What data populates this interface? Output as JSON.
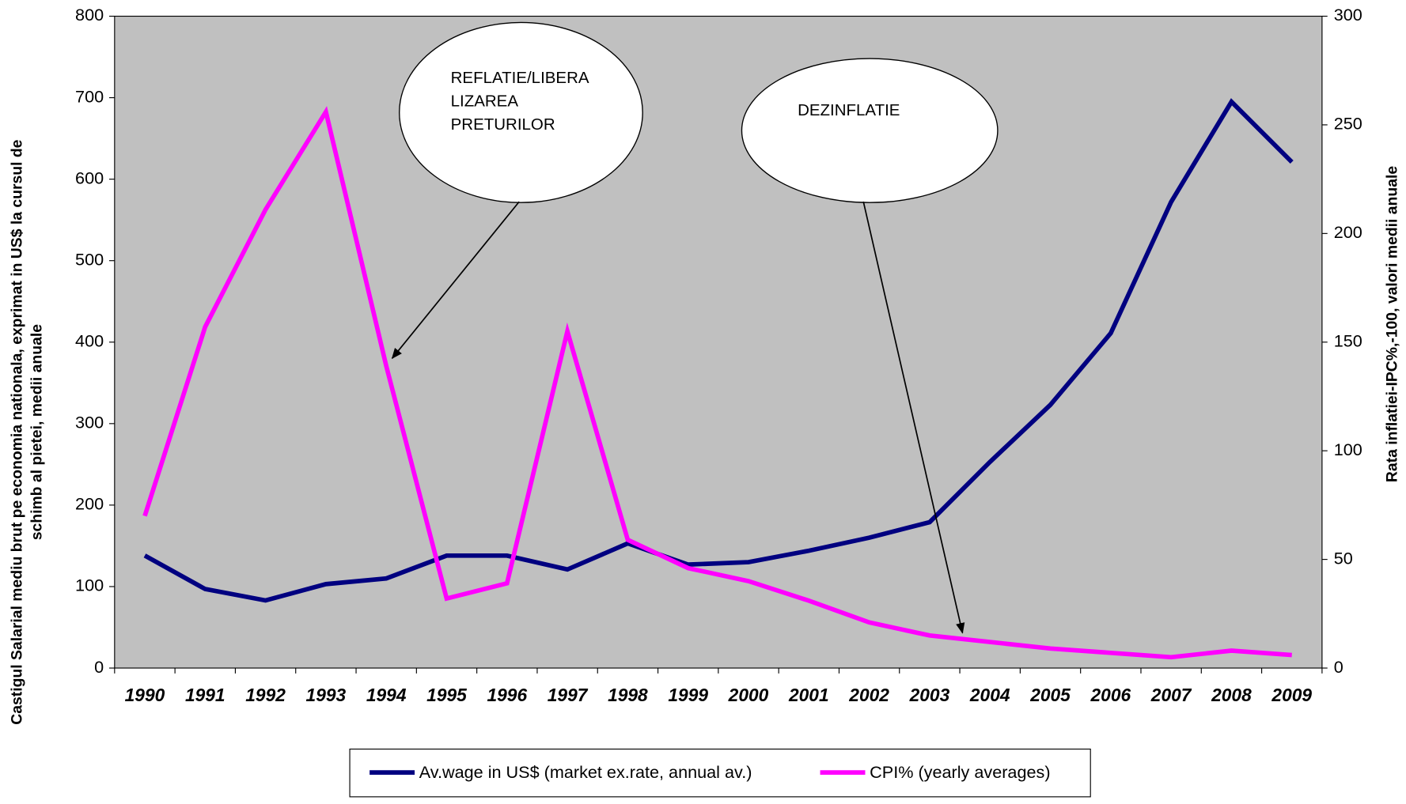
{
  "chart_data": {
    "type": "line",
    "categories": [
      "1990",
      "1991",
      "1992",
      "1993",
      "1994",
      "1995",
      "1996",
      "1997",
      "1998",
      "1999",
      "2000",
      "2001",
      "2002",
      "2003",
      "2004",
      "2005",
      "2006",
      "2007",
      "2008",
      "2009"
    ],
    "series": [
      {
        "name": "Av.wage in US$ (market ex.rate, annual av.)",
        "color": "#000080",
        "axis": "y",
        "values": [
          138,
          97,
          83,
          103,
          110,
          138,
          138,
          121,
          153,
          127,
          130,
          144,
          160,
          179,
          253,
          323,
          411,
          572,
          695,
          621
        ]
      },
      {
        "name": "CPI% (yearly averages)",
        "color": "#ff00ff",
        "axis": "y2",
        "values": [
          70,
          157,
          211,
          256,
          139,
          32,
          39,
          155,
          59,
          46,
          40,
          31,
          21,
          15,
          12,
          9,
          7,
          5,
          8,
          6
        ]
      }
    ],
    "ylim": [
      0,
      800
    ],
    "yticks": [
      0,
      100,
      200,
      300,
      400,
      500,
      600,
      700,
      800
    ],
    "y2lim": [
      0,
      300
    ],
    "y2ticks": [
      0,
      50,
      100,
      150,
      200,
      250,
      300
    ],
    "ylabel": [
      "Castigul Salarial mediu brut pe economia nationala, exprimat in US$ la cursul de",
      "schimb al pietei, medii anuale"
    ],
    "y2label": "Rata inflatiei-IPC%,-100, valori medii anuale",
    "annotations": [
      {
        "lines": [
          "REFLATIE/LIBERA",
          "LIZAREA",
          "PRETURILOR"
        ]
      },
      {
        "lines": [
          "DEZINFLATIE"
        ]
      }
    ],
    "grid": false,
    "legend": "bottom",
    "background": "#c0c0c0"
  }
}
